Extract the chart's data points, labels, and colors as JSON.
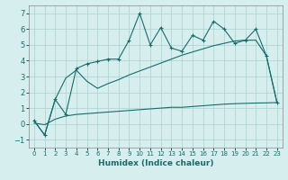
{
  "title": "",
  "xlabel": "Humidex (Indice chaleur)",
  "ylabel": "",
  "bg_color": "#d6eeee",
  "grid_color": "#b0d4d4",
  "line_color": "#1a6b6b",
  "xlim": [
    -0.5,
    23.5
  ],
  "ylim": [
    -1.5,
    7.5
  ],
  "yticks": [
    -1,
    0,
    1,
    2,
    3,
    4,
    5,
    6,
    7
  ],
  "xticks": [
    0,
    1,
    2,
    3,
    4,
    5,
    6,
    7,
    8,
    9,
    10,
    11,
    12,
    13,
    14,
    15,
    16,
    17,
    18,
    19,
    20,
    21,
    22,
    23
  ],
  "line1_x": [
    0,
    1,
    2,
    3,
    4,
    5,
    6,
    7,
    8,
    9,
    10,
    11,
    12,
    13,
    14,
    15,
    16,
    17,
    18,
    19,
    20,
    21,
    22,
    23
  ],
  "line1_y": [
    0.2,
    -0.7,
    1.55,
    0.6,
    3.5,
    3.8,
    3.95,
    4.1,
    4.1,
    5.3,
    7.0,
    5.0,
    6.1,
    4.8,
    4.6,
    5.6,
    5.3,
    6.5,
    6.0,
    5.1,
    5.3,
    6.0,
    4.3,
    1.35
  ],
  "line2_x": [
    0,
    1,
    2,
    3,
    4,
    5,
    6,
    7,
    8,
    9,
    10,
    11,
    12,
    13,
    14,
    15,
    16,
    17,
    18,
    19,
    20,
    21,
    22,
    23
  ],
  "line2_y": [
    0.2,
    -0.7,
    1.55,
    2.9,
    3.4,
    2.7,
    2.25,
    2.55,
    2.8,
    3.1,
    3.35,
    3.6,
    3.85,
    4.1,
    4.35,
    4.55,
    4.75,
    4.95,
    5.1,
    5.25,
    5.3,
    5.3,
    4.3,
    1.35
  ],
  "line3_x": [
    0,
    1,
    2,
    3,
    4,
    5,
    6,
    7,
    8,
    9,
    10,
    11,
    12,
    13,
    14,
    15,
    16,
    17,
    18,
    19,
    20,
    21,
    22,
    23
  ],
  "line3_y": [
    0.05,
    -0.05,
    0.3,
    0.5,
    0.6,
    0.65,
    0.7,
    0.75,
    0.8,
    0.85,
    0.9,
    0.95,
    1.0,
    1.05,
    1.05,
    1.1,
    1.15,
    1.2,
    1.25,
    1.28,
    1.3,
    1.32,
    1.33,
    1.35
  ],
  "xlabel_fontsize": 6.5,
  "tick_fontsize_x": 5,
  "tick_fontsize_y": 6
}
